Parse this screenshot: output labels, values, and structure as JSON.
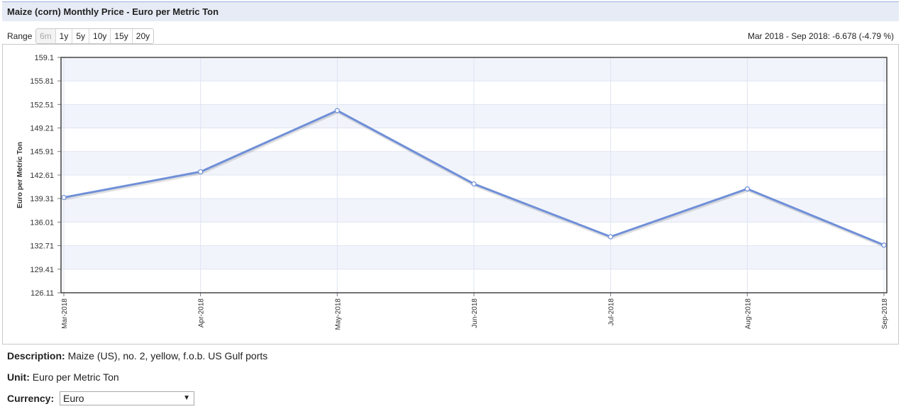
{
  "header": {
    "title": "Maize (corn) Monthly Price - Euro per Metric Ton"
  },
  "range": {
    "label": "Range",
    "buttons": [
      {
        "label": "6m",
        "disabled": true
      },
      {
        "label": "1y",
        "disabled": false
      },
      {
        "label": "5y",
        "disabled": false
      },
      {
        "label": "10y",
        "disabled": false
      },
      {
        "label": "15y",
        "disabled": false
      },
      {
        "label": "20y",
        "disabled": false
      }
    ],
    "summary": "Mar 2018 - Sep 2018: -6.678 (-4.79 %)"
  },
  "chart_data": {
    "type": "line",
    "ylabel": "Euro per Metric Ton",
    "ylim": [
      126.11,
      159.1
    ],
    "yticks": [
      "126.11",
      "129.41",
      "132.71",
      "136.01",
      "139.31",
      "142.61",
      "145.91",
      "149.21",
      "152.51",
      "155.81",
      "159.1"
    ],
    "categories": [
      "Mar-2018",
      "Apr-2018",
      "May-2018",
      "Jun-2018",
      "Jul-2018",
      "Aug-2018",
      "Sep-2018"
    ],
    "series": [
      {
        "values": [
          139.47,
          143.07,
          151.65,
          141.37,
          133.96,
          140.67,
          132.79
        ]
      }
    ],
    "line_color": "#6f8fd8",
    "grid": true
  },
  "description": {
    "label": "Description:",
    "text": "Maize (US), no. 2, yellow, f.o.b. US Gulf ports"
  },
  "unit": {
    "label": "Unit:",
    "text": "Euro per Metric Ton"
  },
  "currency": {
    "label": "Currency:",
    "value": "Euro"
  }
}
